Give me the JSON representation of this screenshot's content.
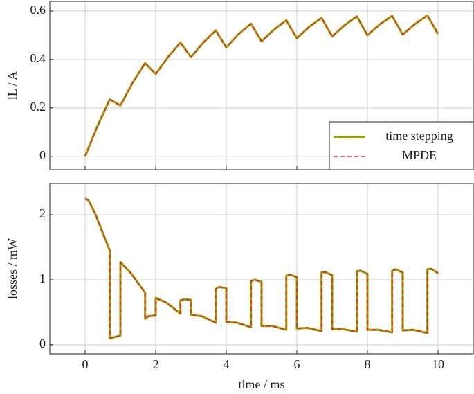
{
  "chart_data": [
    {
      "type": "line",
      "ylabel": "iL / A",
      "x": [
        0,
        0.35,
        0.7,
        1.0,
        1.35,
        1.7,
        2.0,
        2.35,
        2.7,
        3.0,
        3.35,
        3.7,
        4.0,
        4.35,
        4.7,
        5.0,
        5.35,
        5.7,
        6.0,
        6.35,
        6.7,
        7.0,
        7.35,
        7.7,
        8.0,
        8.35,
        8.7,
        9.0,
        9.35,
        9.7,
        10.0
      ],
      "series": [
        {
          "name": "time stepping",
          "color": "#99a300",
          "dash": false,
          "values": [
            0,
            0.125,
            0.235,
            0.21,
            0.305,
            0.385,
            0.34,
            0.41,
            0.47,
            0.41,
            0.47,
            0.52,
            0.45,
            0.505,
            0.548,
            0.475,
            0.523,
            0.562,
            0.488,
            0.535,
            0.572,
            0.495,
            0.541,
            0.578,
            0.5,
            0.545,
            0.58,
            0.503,
            0.547,
            0.582,
            0.505
          ]
        },
        {
          "name": "MPDE",
          "color": "#e8223c",
          "dash": true,
          "values": [
            0,
            0.125,
            0.235,
            0.21,
            0.305,
            0.385,
            0.34,
            0.41,
            0.47,
            0.41,
            0.47,
            0.52,
            0.45,
            0.505,
            0.548,
            0.475,
            0.523,
            0.562,
            0.488,
            0.535,
            0.572,
            0.495,
            0.541,
            0.578,
            0.5,
            0.545,
            0.58,
            0.503,
            0.547,
            0.582,
            0.505
          ]
        }
      ],
      "xlim": [
        -1,
        11
      ],
      "xticks": [
        0,
        2,
        4,
        6,
        8,
        10
      ],
      "ylim": [
        -0.055,
        0.64
      ],
      "yticks": [
        0,
        0.2,
        0.4,
        0.6
      ],
      "grid": true,
      "legend": "lower right"
    },
    {
      "type": "line",
      "xlabel": "time / ms",
      "ylabel": "losses / mW",
      "x": [
        0,
        0.1,
        0.3,
        0.5,
        0.7,
        0.7,
        1.0,
        1.0,
        1.3,
        1.7,
        1.7,
        1.8,
        2.0,
        2.0,
        2.3,
        2.7,
        2.7,
        2.8,
        3.0,
        3.0,
        3.3,
        3.7,
        3.7,
        3.8,
        4.0,
        4.0,
        4.3,
        4.7,
        4.7,
        4.8,
        5.0,
        5.0,
        5.3,
        5.7,
        5.7,
        5.8,
        6.0,
        6.0,
        6.3,
        6.7,
        6.7,
        6.8,
        7.0,
        7.0,
        7.3,
        7.7,
        7.7,
        7.8,
        8.0,
        8.0,
        8.3,
        8.7,
        8.7,
        8.8,
        9.0,
        9.0,
        9.3,
        9.7,
        9.7,
        9.8,
        10.0
      ],
      "series": [
        {
          "color": "#99a300",
          "dash": false,
          "values": [
            2.25,
            2.22,
            2.0,
            1.72,
            1.45,
            0.1,
            0.14,
            1.27,
            1.1,
            0.8,
            0.4,
            0.44,
            0.45,
            0.72,
            0.65,
            0.48,
            0.68,
            0.7,
            0.69,
            0.46,
            0.44,
            0.34,
            0.86,
            0.89,
            0.87,
            0.35,
            0.34,
            0.27,
            0.98,
            1.0,
            0.97,
            0.29,
            0.29,
            0.23,
            1.06,
            1.08,
            1.04,
            0.25,
            0.26,
            0.21,
            1.11,
            1.12,
            1.07,
            0.24,
            0.24,
            0.2,
            1.13,
            1.14,
            1.09,
            0.23,
            0.23,
            0.19,
            1.14,
            1.16,
            1.11,
            0.22,
            0.23,
            0.18,
            1.16,
            1.17,
            1.1
          ]
        },
        {
          "color": "#e8223c",
          "dash": true,
          "values": [
            2.25,
            2.22,
            2.0,
            1.72,
            1.45,
            0.1,
            0.14,
            1.27,
            1.1,
            0.8,
            0.4,
            0.44,
            0.45,
            0.72,
            0.65,
            0.48,
            0.68,
            0.7,
            0.69,
            0.46,
            0.44,
            0.34,
            0.86,
            0.89,
            0.87,
            0.35,
            0.34,
            0.27,
            0.98,
            1.0,
            0.97,
            0.29,
            0.29,
            0.23,
            1.06,
            1.08,
            1.04,
            0.25,
            0.26,
            0.21,
            1.11,
            1.12,
            1.07,
            0.24,
            0.24,
            0.2,
            1.13,
            1.14,
            1.09,
            0.23,
            0.23,
            0.19,
            1.14,
            1.16,
            1.11,
            0.22,
            0.23,
            0.18,
            1.16,
            1.17,
            1.1
          ]
        }
      ],
      "xlim": [
        -1,
        11
      ],
      "xticks": [
        0,
        2,
        4,
        6,
        8,
        10
      ],
      "ylim": [
        -0.14,
        2.48
      ],
      "yticks": [
        0,
        1,
        2
      ],
      "grid": true
    }
  ]
}
